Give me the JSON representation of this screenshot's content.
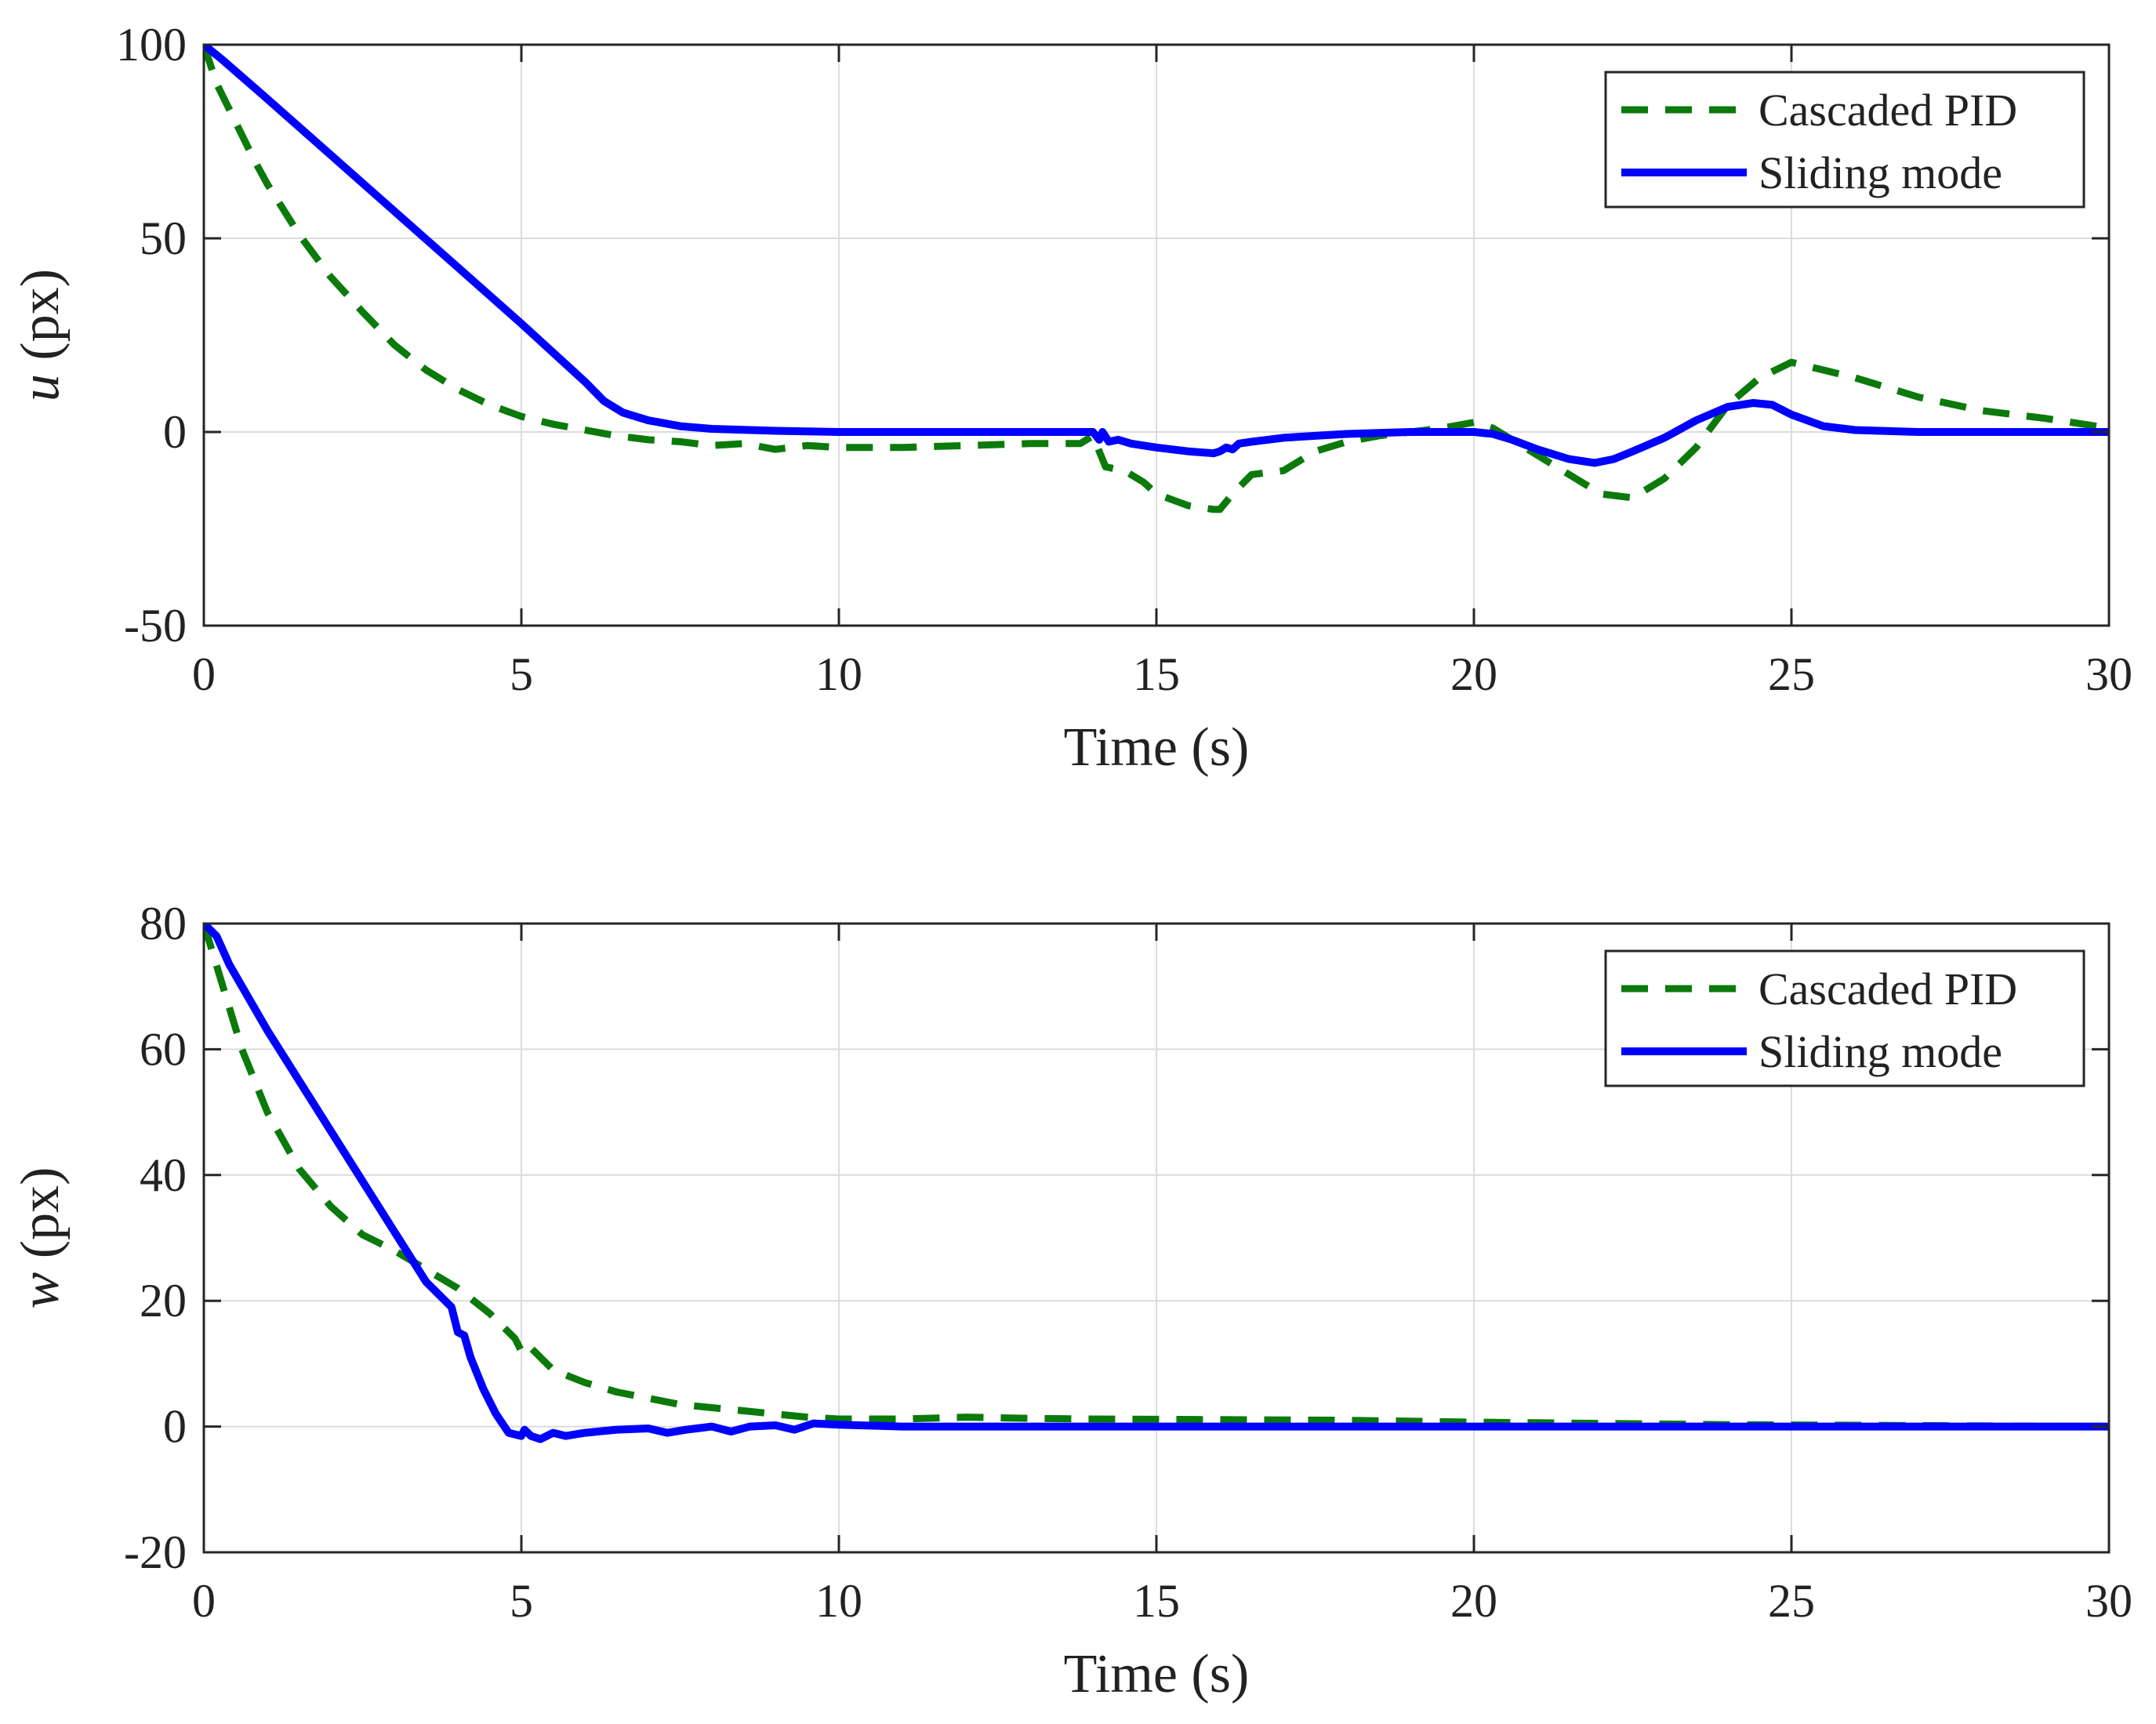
{
  "colors": {
    "pid": "#0b7a0b",
    "sliding": "#0000ff",
    "grid": "#dcdcdc",
    "axis": "#262626"
  },
  "chart_data": [
    {
      "type": "line",
      "xlabel": "Time (s)",
      "ylabel_var": "u",
      "ylabel_unit": " (px)",
      "xlim": [
        0,
        30
      ],
      "ylim": [
        -50,
        100
      ],
      "xticks": [
        0,
        5,
        10,
        15,
        20,
        25,
        30
      ],
      "yticks": [
        -50,
        0,
        50,
        100
      ],
      "xtick_labels": [
        "0",
        "5",
        "10",
        "15",
        "20",
        "25",
        "30"
      ],
      "ytick_labels": [
        "-50",
        "0",
        "50",
        "100"
      ],
      "grid": true,
      "legend": {
        "position": "top-right",
        "entries": [
          "Cascaded PID",
          "Sliding mode"
        ]
      },
      "series": [
        {
          "name": "Cascaded PID",
          "style": "dashed",
          "x": [
            0,
            0.2,
            0.5,
            0.8,
            1.0,
            1.5,
            2.0,
            2.5,
            3.0,
            3.5,
            4.0,
            4.5,
            5.0,
            5.5,
            6.0,
            6.5,
            7.0,
            7.5,
            8.0,
            8.5,
            9.0,
            9.5,
            10.0,
            11.0,
            12.0,
            13.0,
            13.8,
            14.0,
            14.1,
            14.2,
            14.5,
            14.8,
            15.0,
            15.5,
            15.9,
            16.0,
            16.2,
            16.5,
            17.0,
            17.5,
            18.0,
            18.5,
            19.0,
            19.5,
            20.0,
            20.3,
            20.6,
            21.0,
            21.5,
            22.0,
            22.5,
            23.0,
            23.5,
            24.0,
            24.5,
            25.0,
            26.0,
            27.0,
            28.0,
            29.0,
            30.0
          ],
          "y": [
            100,
            90,
            80,
            70,
            64,
            51,
            40,
            31,
            22.5,
            16,
            11,
            7,
            4,
            2,
            0.5,
            -1,
            -2,
            -2.5,
            -3.5,
            -3,
            -4.5,
            -3.5,
            -4,
            -4,
            -3.5,
            -3,
            -3,
            -1,
            -5,
            -9,
            -10,
            -13,
            -16,
            -19,
            -20,
            -20,
            -16,
            -11,
            -10,
            -5,
            -2.5,
            -1,
            0,
            1,
            2.5,
            1,
            -2,
            -6,
            -11,
            -16,
            -17,
            -12,
            -4,
            7,
            14,
            18,
            14,
            9,
            5.5,
            3.5,
            1
          ]
        },
        {
          "name": "Sliding mode",
          "style": "solid",
          "x": [
            0,
            0.3,
            1.0,
            2.0,
            3.0,
            4.0,
            5.0,
            5.8,
            6.0,
            6.3,
            6.6,
            7.0,
            7.5,
            8.0,
            9.0,
            10.0,
            11.0,
            12.0,
            13.0,
            14.0,
            14.1,
            14.15,
            14.25,
            14.4,
            14.6,
            15.0,
            15.5,
            15.9,
            16.0,
            16.1,
            16.2,
            16.3,
            16.5,
            17.0,
            17.5,
            18.0,
            19.0,
            20.0,
            20.3,
            20.6,
            21.0,
            21.5,
            21.9,
            22.2,
            22.5,
            23.0,
            23.5,
            24.0,
            24.4,
            24.7,
            25.0,
            25.5,
            26.0,
            27.0,
            28.0,
            30.0
          ],
          "y": [
            100,
            96,
            86,
            71.5,
            57,
            42.5,
            28,
            16,
            13,
            8,
            5,
            3,
            1.5,
            0.8,
            0.3,
            0,
            0,
            0,
            0,
            0,
            -2,
            0,
            -2.5,
            -2,
            -3,
            -4,
            -5,
            -5.5,
            -5,
            -4,
            -4.5,
            -3,
            -2.5,
            -1.5,
            -1,
            -0.5,
            0,
            0,
            -0.5,
            -2,
            -4.5,
            -7,
            -8,
            -7,
            -5,
            -1.5,
            3,
            6.5,
            7.5,
            7,
            4.5,
            1.5,
            0.5,
            0,
            0,
            0
          ]
        }
      ]
    },
    {
      "type": "line",
      "xlabel": "Time (s)",
      "ylabel_var": "w",
      "ylabel_unit": " (px)",
      "xlim": [
        0,
        30
      ],
      "ylim": [
        -20,
        80
      ],
      "xticks": [
        0,
        5,
        10,
        15,
        20,
        25,
        30
      ],
      "yticks": [
        -20,
        0,
        20,
        40,
        60,
        80
      ],
      "xtick_labels": [
        "0",
        "5",
        "10",
        "15",
        "20",
        "25",
        "30"
      ],
      "ytick_labels": [
        "-20",
        "0",
        "20",
        "40",
        "60",
        "80"
      ],
      "grid": true,
      "legend": {
        "position": "top-right",
        "entries": [
          "Cascaded PID",
          "Sliding mode"
        ]
      },
      "series": [
        {
          "name": "Cascaded PID",
          "style": "dashed",
          "x": [
            0,
            0.3,
            0.6,
            1.0,
            1.5,
            2.0,
            2.5,
            3.0,
            3.5,
            4.0,
            4.5,
            4.9,
            5.0,
            5.1,
            5.5,
            6.0,
            6.5,
            7.0,
            7.5,
            8.0,
            8.5,
            9.0,
            9.5,
            10.0,
            11.0,
            12.0,
            13.0,
            14.0,
            16.0,
            18.0,
            20.0,
            22.0,
            24.0,
            26.0,
            28.0,
            30.0
          ],
          "y": [
            80,
            70,
            60,
            50,
            41,
            35,
            30.5,
            28,
            25,
            22,
            18,
            14,
            12,
            13,
            9,
            7,
            5.5,
            4.5,
            3.5,
            3,
            2.5,
            2,
            1.5,
            1.2,
            1.2,
            1.5,
            1.3,
            1.2,
            1.1,
            1,
            0.7,
            0.5,
            0.3,
            0.2,
            0.1,
            0
          ]
        },
        {
          "name": "Sliding mode",
          "style": "solid",
          "x": [
            0,
            0.2,
            0.4,
            1.0,
            2.0,
            3.0,
            3.5,
            3.9,
            4.0,
            4.1,
            4.2,
            4.4,
            4.6,
            4.8,
            5.0,
            5.05,
            5.15,
            5.3,
            5.5,
            5.7,
            6.0,
            6.5,
            7.0,
            7.3,
            7.6,
            8.0,
            8.3,
            8.6,
            9.0,
            9.3,
            9.6,
            10.0,
            11.0,
            15.0,
            20.0,
            25.0,
            30.0
          ],
          "y": [
            80,
            78,
            73.5,
            63,
            47,
            31,
            23,
            19,
            15,
            14.5,
            11,
            6,
            2,
            -1,
            -1.5,
            -0.5,
            -1.5,
            -2,
            -1,
            -1.5,
            -1,
            -0.5,
            -0.3,
            -1,
            -0.5,
            0,
            -0.8,
            0,
            0.2,
            -0.5,
            0.5,
            0.3,
            0,
            0,
            0,
            0,
            0
          ]
        }
      ]
    }
  ]
}
